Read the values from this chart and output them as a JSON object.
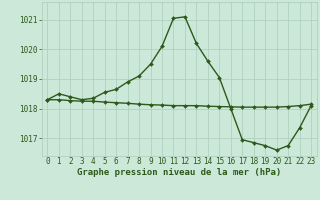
{
  "line1_x": [
    0,
    1,
    2,
    3,
    4,
    5,
    6,
    7,
    8,
    9,
    10,
    11,
    12,
    13,
    14,
    15,
    16,
    17,
    18,
    19,
    20,
    21,
    22,
    23
  ],
  "line1_y": [
    1018.3,
    1018.5,
    1018.4,
    1018.3,
    1018.35,
    1018.55,
    1018.65,
    1018.9,
    1019.1,
    1019.5,
    1020.1,
    1021.05,
    1021.1,
    1020.2,
    1019.6,
    1019.05,
    1018.0,
    1016.95,
    1016.85,
    1016.75,
    1016.6,
    1016.75,
    1017.35,
    1018.1
  ],
  "line2_x": [
    0,
    1,
    2,
    3,
    4,
    5,
    6,
    7,
    8,
    9,
    10,
    11,
    12,
    13,
    14,
    15,
    16,
    17,
    18,
    19,
    20,
    21,
    22,
    23
  ],
  "line2_y": [
    1018.3,
    1018.3,
    1018.27,
    1018.25,
    1018.25,
    1018.22,
    1018.2,
    1018.18,
    1018.15,
    1018.13,
    1018.12,
    1018.1,
    1018.1,
    1018.1,
    1018.08,
    1018.07,
    1018.06,
    1018.05,
    1018.05,
    1018.05,
    1018.05,
    1018.07,
    1018.1,
    1018.15
  ],
  "line_color": "#2d5a1b",
  "bg_color": "#cce8d8",
  "grid_color": "#aacebb",
  "xlabel": "Graphe pression niveau de la mer (hPa)",
  "ylim": [
    1016.4,
    1021.6
  ],
  "xlim": [
    -0.5,
    23.5
  ],
  "yticks": [
    1017,
    1018,
    1019,
    1020,
    1021
  ],
  "xticks": [
    0,
    1,
    2,
    3,
    4,
    5,
    6,
    7,
    8,
    9,
    10,
    11,
    12,
    13,
    14,
    15,
    16,
    17,
    18,
    19,
    20,
    21,
    22,
    23
  ],
  "marker": "D",
  "marker_size": 2.0,
  "line_width": 1.0,
  "font_color": "#2d5a1b",
  "xlabel_fontsize": 6.5,
  "tick_fontsize": 5.5
}
